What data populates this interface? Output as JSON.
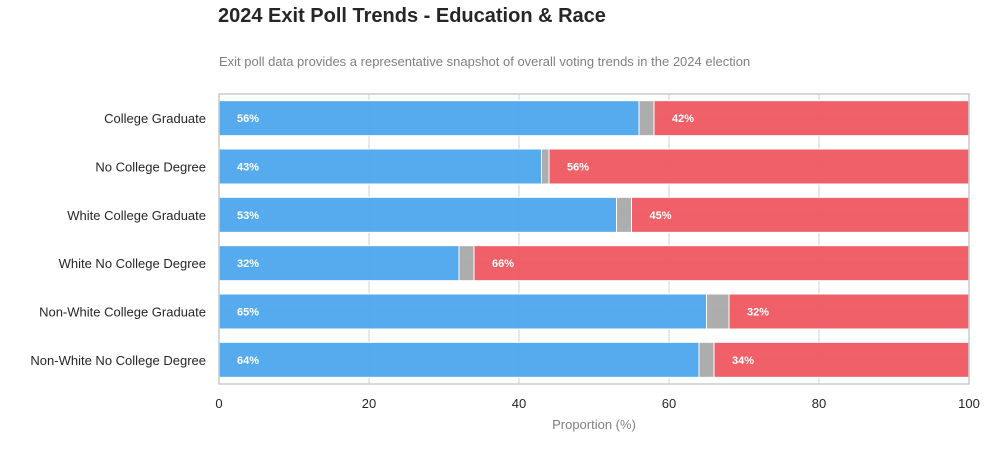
{
  "colors": {
    "harris": "#4da6ed",
    "trump": "#ee5760",
    "other": "#a9a9a9",
    "grid": "#d9d9d9",
    "frame": "#cccccc"
  },
  "chart_data": {
    "type": "bar",
    "orientation": "horizontal",
    "stacked": true,
    "title": "2024 Exit Poll Trends - Education & Race",
    "subtitle": "Exit poll data provides a representative snapshot of overall voting trends in the 2024 election",
    "xlabel": "Proportion (%)",
    "ylabel": "",
    "xlim": [
      0,
      100
    ],
    "xticks": [
      0,
      20,
      40,
      60,
      80,
      100
    ],
    "grid": true,
    "legend": "none",
    "categories": [
      "College Graduate",
      "No College Degree",
      "White College Graduate",
      "White No College Degree",
      "Non-White College Graduate",
      "Non-White No College Degree"
    ],
    "series": [
      {
        "color": "#4da6ed",
        "values": [
          56,
          43,
          53,
          32,
          65,
          64
        ],
        "labels": [
          "56%",
          "43%",
          "53%",
          "32%",
          "65%",
          "64%"
        ]
      },
      {
        "color": "#a9a9a9",
        "values": [
          2,
          1,
          2,
          2,
          3,
          2
        ],
        "labels": [
          "",
          "",
          "",
          "",
          "",
          ""
        ]
      },
      {
        "color": "#ee5760",
        "values": [
          42,
          56,
          45,
          66,
          32,
          34
        ],
        "labels": [
          "42%",
          "56%",
          "45%",
          "66%",
          "32%",
          "34%"
        ]
      }
    ]
  }
}
